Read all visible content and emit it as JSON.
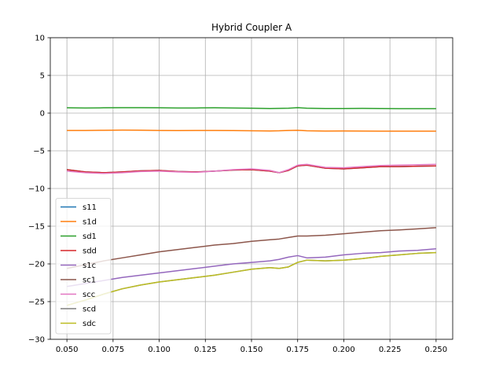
{
  "chart_data": {
    "type": "line",
    "title": "Hybrid Coupler A",
    "xlabel": "",
    "ylabel": "",
    "xlim": [
      0.041,
      0.259
    ],
    "ylim": [
      -30,
      10
    ],
    "xticks": [
      "0.050",
      "0.075",
      "0.100",
      "0.125",
      "0.150",
      "0.175",
      "0.200",
      "0.225",
      "0.250"
    ],
    "yticks": [
      "10",
      "5",
      "0",
      "−5",
      "−10",
      "−15",
      "−20",
      "−25",
      "−30"
    ],
    "grid": true,
    "legend_position": "lower-left",
    "x": [
      0.05,
      0.06,
      0.07,
      0.08,
      0.09,
      0.1,
      0.11,
      0.12,
      0.13,
      0.14,
      0.15,
      0.16,
      0.165,
      0.17,
      0.175,
      0.18,
      0.19,
      0.2,
      0.21,
      0.22,
      0.23,
      0.24,
      0.25
    ],
    "series": [
      {
        "name": "s11",
        "color": "#1f77b4",
        "values": [
          -7.5,
          -7.8,
          -7.9,
          -7.8,
          -7.65,
          -7.6,
          -7.75,
          -7.8,
          -7.7,
          -7.55,
          -7.5,
          -7.7,
          -7.9,
          -7.6,
          -7.0,
          -6.9,
          -7.3,
          -7.4,
          -7.25,
          -7.1,
          -7.1,
          -7.05,
          -7.0
        ]
      },
      {
        "name": "s1d",
        "color": "#ff7f0e",
        "values": [
          -2.3,
          -2.3,
          -2.28,
          -2.25,
          -2.27,
          -2.3,
          -2.32,
          -2.3,
          -2.3,
          -2.32,
          -2.35,
          -2.37,
          -2.35,
          -2.3,
          -2.28,
          -2.35,
          -2.38,
          -2.37,
          -2.38,
          -2.4,
          -2.4,
          -2.4,
          -2.4
        ]
      },
      {
        "name": "sd1",
        "color": "#2ca02c",
        "values": [
          0.7,
          0.68,
          0.7,
          0.72,
          0.72,
          0.7,
          0.68,
          0.68,
          0.7,
          0.68,
          0.65,
          0.6,
          0.62,
          0.65,
          0.72,
          0.65,
          0.6,
          0.6,
          0.62,
          0.6,
          0.58,
          0.58,
          0.58
        ]
      },
      {
        "name": "sdd",
        "color": "#d62728",
        "values": [
          -7.5,
          -7.8,
          -7.9,
          -7.8,
          -7.65,
          -7.6,
          -7.75,
          -7.8,
          -7.7,
          -7.55,
          -7.5,
          -7.7,
          -7.9,
          -7.6,
          -7.0,
          -6.9,
          -7.3,
          -7.4,
          -7.25,
          -7.1,
          -7.1,
          -7.05,
          -7.0
        ]
      },
      {
        "name": "s1c",
        "color": "#9467bd",
        "values": [
          -23.0,
          -22.6,
          -22.2,
          -21.8,
          -21.5,
          -21.2,
          -20.9,
          -20.6,
          -20.3,
          -20.0,
          -19.8,
          -19.6,
          -19.4,
          -19.1,
          -18.9,
          -19.2,
          -19.1,
          -18.8,
          -18.6,
          -18.5,
          -18.3,
          -18.2,
          -18.0
        ]
      },
      {
        "name": "sc1",
        "color": "#8c564b",
        "values": [
          -20.6,
          -20.1,
          -19.6,
          -19.2,
          -18.8,
          -18.4,
          -18.1,
          -17.8,
          -17.5,
          -17.3,
          -17.0,
          -16.8,
          -16.7,
          -16.5,
          -16.3,
          -16.3,
          -16.2,
          -16.0,
          -15.8,
          -15.6,
          -15.5,
          -15.35,
          -15.2
        ]
      },
      {
        "name": "scc",
        "color": "#e377c2",
        "values": [
          -7.7,
          -7.9,
          -8.0,
          -7.9,
          -7.75,
          -7.7,
          -7.8,
          -7.85,
          -7.7,
          -7.5,
          -7.4,
          -7.6,
          -7.9,
          -7.5,
          -6.9,
          -6.8,
          -7.2,
          -7.25,
          -7.1,
          -6.95,
          -6.9,
          -6.85,
          -6.8
        ]
      },
      {
        "name": "scd",
        "color": "#7f7f7f",
        "values": [
          -25.5,
          -24.8,
          -24.0,
          -23.3,
          -22.8,
          -22.4,
          -22.1,
          -21.8,
          -21.5,
          -21.1,
          -20.7,
          -20.5,
          -20.6,
          -20.4,
          -19.8,
          -19.5,
          -19.6,
          -19.5,
          -19.3,
          -19.0,
          -18.8,
          -18.6,
          -18.5
        ]
      },
      {
        "name": "sdc",
        "color": "#bcbd22",
        "values": [
          -25.5,
          -24.8,
          -24.0,
          -23.3,
          -22.8,
          -22.4,
          -22.1,
          -21.8,
          -21.5,
          -21.1,
          -20.7,
          -20.5,
          -20.6,
          -20.4,
          -19.8,
          -19.5,
          -19.6,
          -19.5,
          -19.3,
          -19.0,
          -18.8,
          -18.6,
          -18.5
        ]
      }
    ]
  }
}
